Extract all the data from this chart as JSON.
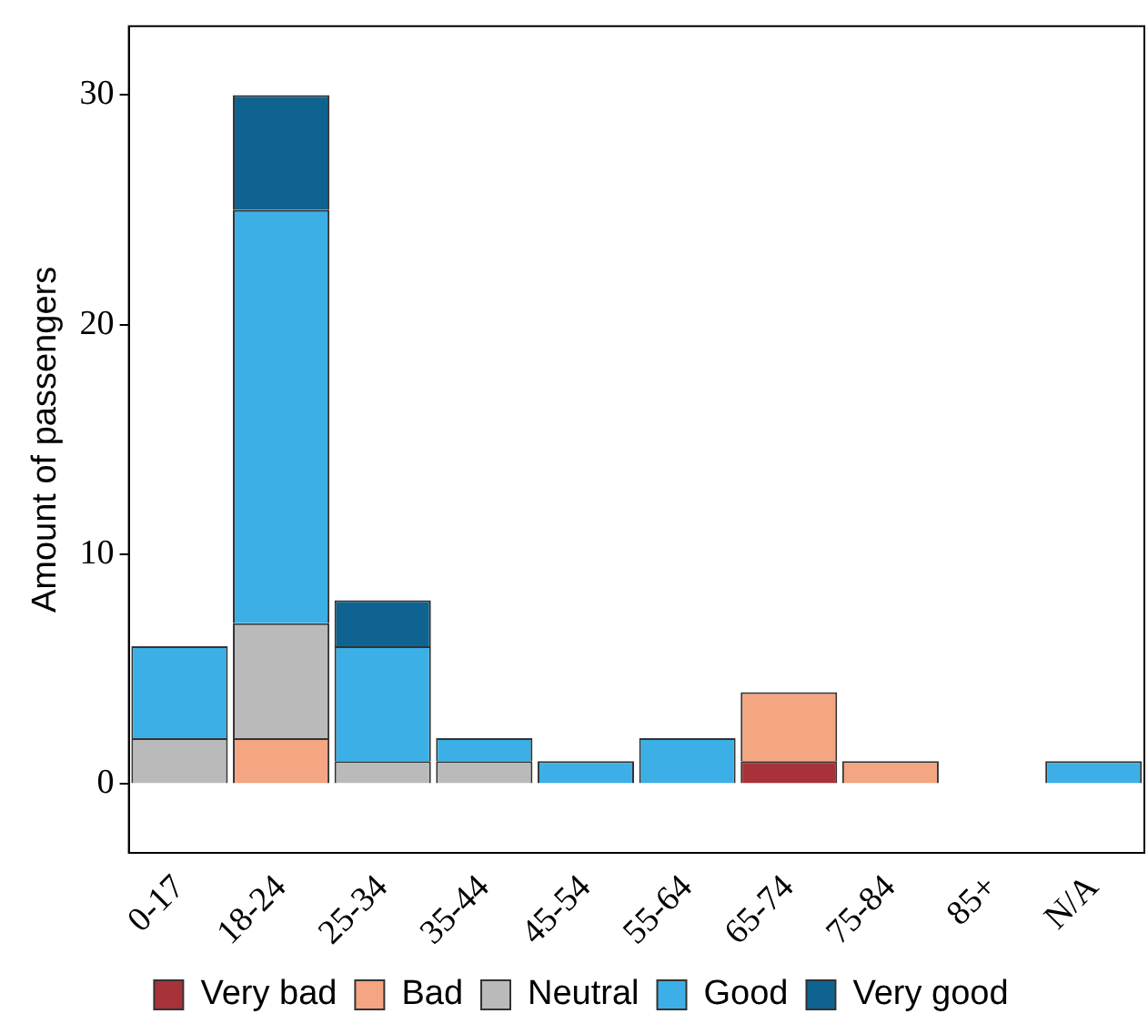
{
  "chart_data": {
    "type": "bar",
    "stacked": true,
    "ylabel": "Amount of passengers",
    "categories": [
      "0-17",
      "18-24",
      "25-34",
      "35-44",
      "45-54",
      "55-64",
      "65-74",
      "75-84",
      "85+",
      "N/A"
    ],
    "series": [
      {
        "name": "Very bad",
        "color": "#a8323a",
        "values": [
          null,
          null,
          null,
          null,
          null,
          null,
          1,
          null,
          null,
          null
        ]
      },
      {
        "name": "Bad",
        "color": "#f4a582",
        "values": [
          null,
          2,
          null,
          null,
          null,
          null,
          3,
          1,
          null,
          null
        ]
      },
      {
        "name": "Neutral",
        "color": "#bababa",
        "values": [
          2,
          5,
          1,
          1,
          null,
          null,
          null,
          null,
          null,
          null
        ]
      },
      {
        "name": "Good",
        "color": "#3cb0e6",
        "values": [
          4,
          18,
          5,
          1,
          1,
          2,
          null,
          null,
          null,
          1
        ]
      },
      {
        "name": "Very good",
        "color": "#0f6390",
        "values": [
          null,
          5,
          2,
          null,
          null,
          null,
          null,
          null,
          null,
          null
        ]
      }
    ],
    "ylim": [
      -3,
      33
    ],
    "yticks": [
      0,
      10,
      20,
      30
    ],
    "grid": false,
    "legend": "bottom"
  }
}
